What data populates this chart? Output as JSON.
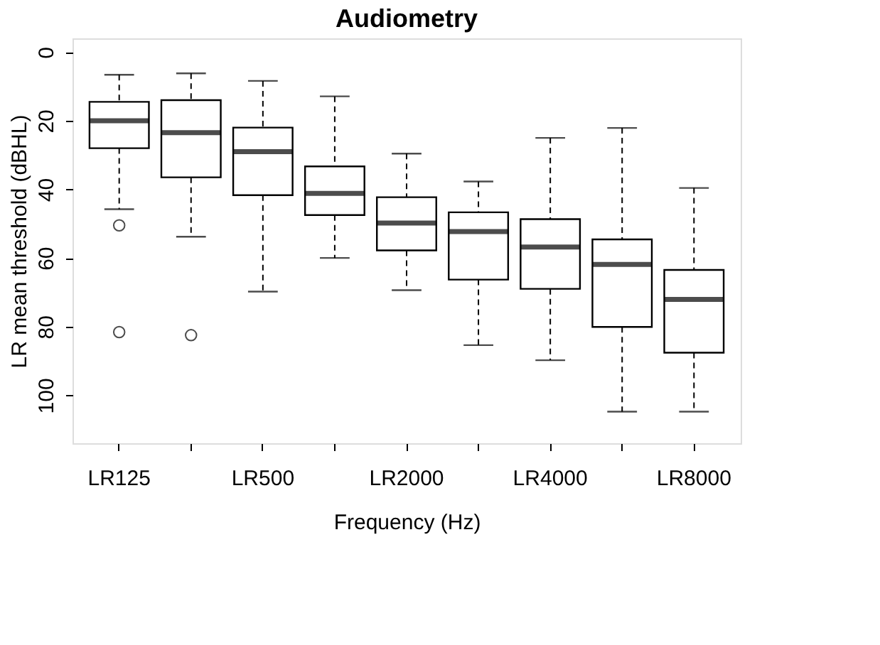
{
  "chart_data": {
    "type": "box",
    "title": "Audiometry",
    "xlabel": "Frequency (Hz)",
    "ylabel": "LR mean threshold (dBHL)",
    "categories": [
      "LR125",
      null,
      "LR500",
      null,
      "LR2000",
      null,
      "LR4000",
      null,
      "LR8000"
    ],
    "boxes": [
      {
        "low": 6.6,
        "q1": 14.5,
        "median": 20,
        "q3": 28,
        "high": 45.8,
        "outliers": [
          50.5,
          81.6
        ]
      },
      {
        "low": 6.2,
        "q1": 14,
        "median": 23.5,
        "q3": 36.5,
        "high": 53.8,
        "outliers": [
          82.5
        ]
      },
      {
        "low": 8.4,
        "q1": 22,
        "median": 29,
        "q3": 41.7,
        "high": 69.8
      },
      {
        "low": 12.9,
        "q1": 33.3,
        "median": 41.2,
        "q3": 47.5,
        "high": 60
      },
      {
        "low": 29.6,
        "q1": 42.3,
        "median": 49.8,
        "q3": 57.8,
        "high": 69.4
      },
      {
        "low": 37.7,
        "q1": 46.7,
        "median": 52.3,
        "q3": 66.3,
        "high": 85.4
      },
      {
        "low": 25,
        "q1": 48.7,
        "median": 56.8,
        "q3": 69,
        "high": 89.8
      },
      {
        "low": 22.1,
        "q1": 54.6,
        "median": 61.9,
        "q3": 80.1,
        "high": 104.8
      },
      {
        "low": 39.6,
        "q1": 63.5,
        "median": 72.1,
        "q3": 87.6,
        "high": 104.8
      }
    ],
    "ylim": [
      114,
      -4
    ],
    "yticks": [
      0,
      20,
      40,
      60,
      80,
      100
    ],
    "grid": false
  }
}
